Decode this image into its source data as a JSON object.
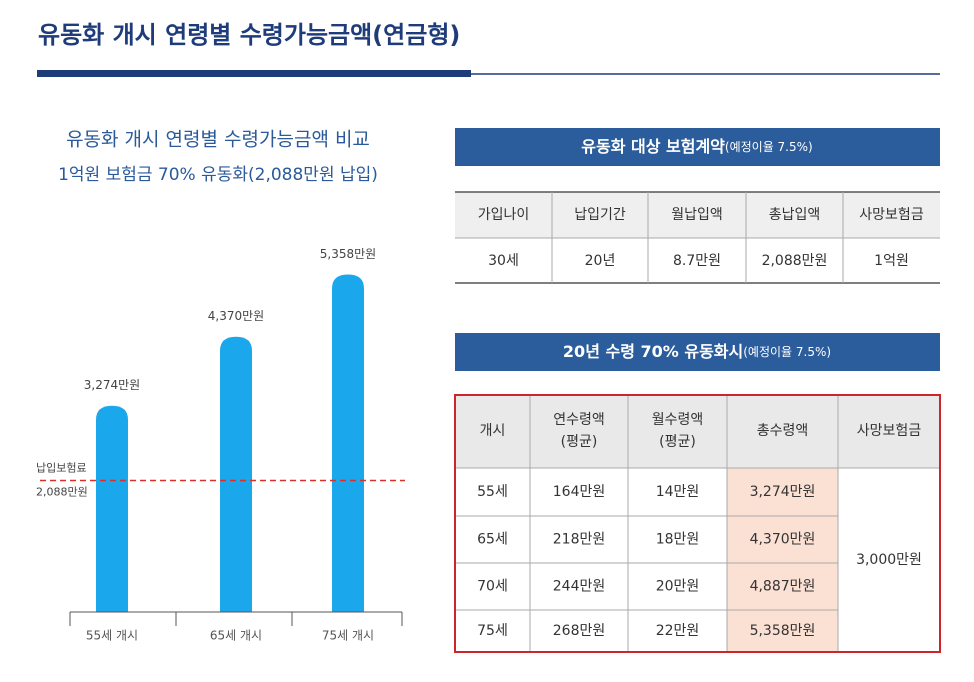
{
  "header": {
    "title": "유동화 개시 연령별 수령가능금액(연금형)"
  },
  "chart_data": {
    "type": "bar",
    "title": "유동화 개시 연령별 수령가능금액 비교",
    "subtitle": "1억원 보험금 70% 유동화(2,088만원 납입)",
    "categories": [
      "55세 개시",
      "65세 개시",
      "75세 개시"
    ],
    "values": [
      3274,
      4370,
      5358
    ],
    "value_labels": [
      "3,274만원",
      "4,370만원",
      "5,358만원"
    ],
    "color": "#1aa7ec",
    "reference": {
      "value": 2088,
      "label_lines": [
        "납입보험료",
        "2,088만원"
      ],
      "color": "#d9302c"
    }
  },
  "table1": {
    "title": "유동화 대상 보험계약",
    "note": "(예정이율 7.5%)",
    "headers": [
      "가입나이",
      "납입기간",
      "월납입액",
      "총납입액",
      "사망보험금"
    ],
    "row": [
      "30세",
      "20년",
      "8.7만원",
      "2,088만원",
      "1억원"
    ]
  },
  "table2": {
    "title": "20년 수령 70% 유동화시",
    "note": "(예정이율 7.5%)",
    "headers": [
      [
        "개시"
      ],
      [
        "연수령액",
        "(평균)"
      ],
      [
        "월수령액",
        "(평균)"
      ],
      [
        "총수령액"
      ],
      [
        "사망보험금"
      ]
    ],
    "rows": [
      [
        "55세",
        "164만원",
        "14만원",
        "3,274만원"
      ],
      [
        "65세",
        "218만원",
        "18만원",
        "4,370만원"
      ],
      [
        "70세",
        "244만원",
        "20만원",
        "4,887만원"
      ],
      [
        "75세",
        "268만원",
        "22만원",
        "5,358만원"
      ]
    ],
    "merged": "3,000만원"
  }
}
